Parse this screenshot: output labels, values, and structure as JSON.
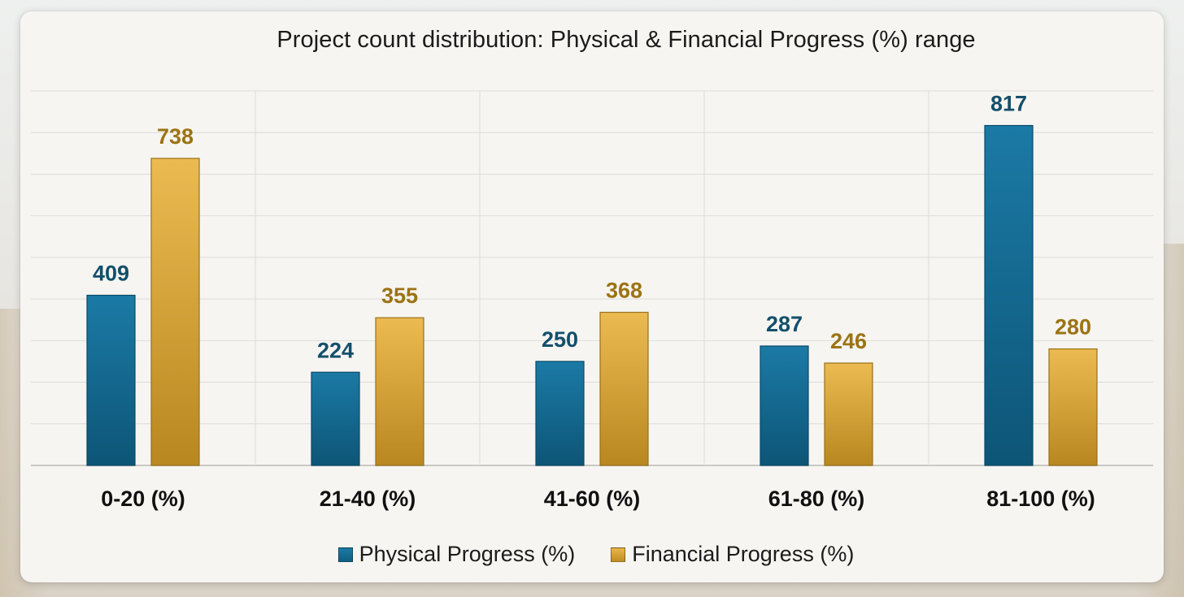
{
  "chart_data": {
    "type": "bar",
    "title": "Project count distribution: Physical & Financial Progress (%) range",
    "categories": [
      "0-20 (%)",
      "21-40 (%)",
      "41-60 (%)",
      "61-80 (%)",
      "81-100 (%)"
    ],
    "series": [
      {
        "name": "Physical Progress (%)",
        "values": [
          409,
          224,
          250,
          287,
          817
        ],
        "color": "#136a92",
        "label_color": "#144f6b"
      },
      {
        "name": "Financial Progress (%)",
        "values": [
          738,
          355,
          368,
          246,
          280
        ],
        "color": "#d9a43a",
        "label_color": "#9c7314"
      }
    ],
    "xlabel": "",
    "ylabel": "",
    "ylim": [
      0,
      900
    ],
    "grid": true,
    "legend": "bottom",
    "data_labels": true
  },
  "colors": {
    "background": "#f6f5f1",
    "gridline": "#dcdcd8",
    "text": "#1b1b1b"
  }
}
